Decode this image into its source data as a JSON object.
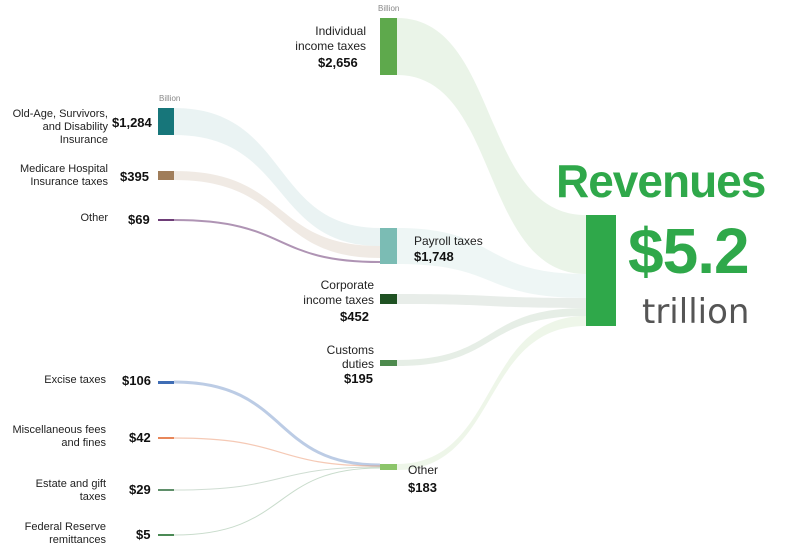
{
  "unit_label": "Billion",
  "headline": {
    "title": "Revenues",
    "total": "$5.2",
    "unit": "trillion"
  },
  "colors": {
    "individual": "#5ea94c",
    "payroll": "#7bbcb4",
    "corporate": "#1f5223",
    "customs": "#4d8a4d",
    "other_mid": "#8cc56a",
    "total": "#2fa84a",
    "oasdi": "#17767a",
    "medicare": "#a07d5a",
    "other_payroll": "#6e3d77",
    "excise": "#3f6db5",
    "misc": "#e8875a",
    "estate": "#5f8f6a",
    "fed": "#4b8a55"
  },
  "payroll_sources": [
    {
      "label": "Old-Age, Survivors, and Disability Insurance",
      "value": "$1,284"
    },
    {
      "label": "Medicare Hospital Insurance taxes",
      "value": "$395"
    },
    {
      "label": "Other",
      "value": "$69"
    }
  ],
  "other_sources": [
    {
      "label": "Excise taxes",
      "value": "$106"
    },
    {
      "label": "Miscellaneous fees and fines",
      "value": "$42"
    },
    {
      "label": "Estate and gift taxes",
      "value": "$29"
    },
    {
      "label": "Federal Reserve remittances",
      "value": "$5"
    }
  ],
  "categories": [
    {
      "label": "Individual income taxes",
      "value": "$2,656"
    },
    {
      "label": "Payroll taxes",
      "value": "$1,748"
    },
    {
      "label": "Corporate income taxes",
      "value": "$452"
    },
    {
      "label": "Customs duties",
      "value": "$195"
    },
    {
      "label": "Other",
      "value": "$183"
    }
  ]
}
